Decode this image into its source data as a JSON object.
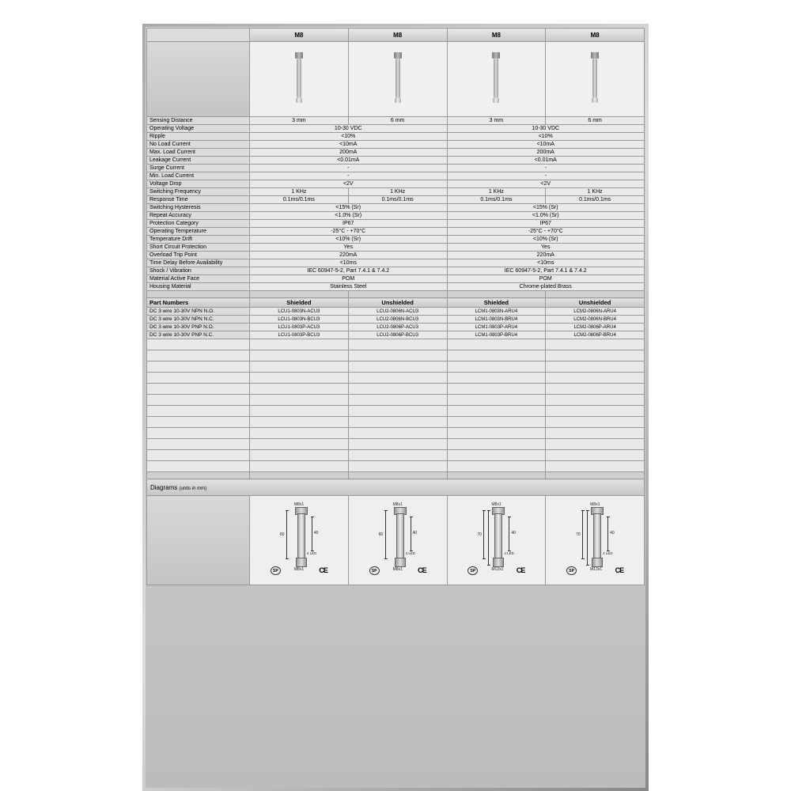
{
  "colors": {
    "border": "#999",
    "bg_light": "#e9e9e9",
    "bg_grad1": "#d8d8d8",
    "bg_grad2": "#bcbcbc"
  },
  "models": [
    "M8",
    "M8",
    "M8",
    "M8"
  ],
  "specs": [
    {
      "label": "Sensing Distance",
      "span": 1,
      "vals": [
        "3 mm",
        "6 mm",
        "3 mm",
        "6 mm"
      ]
    },
    {
      "label": "Operating Voltage",
      "span": 2,
      "vals": [
        "10-30 VDC",
        "10-30 VDC"
      ]
    },
    {
      "label": "Ripple",
      "span": 2,
      "vals": [
        "<10%",
        "<10%"
      ]
    },
    {
      "label": "No Load Current",
      "span": 2,
      "vals": [
        "<10mA",
        "<10mA"
      ]
    },
    {
      "label": "Max. Load Current",
      "span": 2,
      "vals": [
        "200mA",
        "200mA"
      ]
    },
    {
      "label": "Leakage Current",
      "span": 2,
      "vals": [
        "<0.01mA",
        "<0.01mA"
      ]
    },
    {
      "label": "Surge Current",
      "span": 2,
      "vals": [
        "-",
        "-"
      ]
    },
    {
      "label": "Min. Load Current",
      "span": 2,
      "vals": [
        "-",
        "-"
      ]
    },
    {
      "label": "Voltage Drop",
      "span": 2,
      "vals": [
        "<2V",
        "<2V"
      ]
    },
    {
      "label": "Switching Frequency",
      "span": 1,
      "vals": [
        "1 KHz",
        "1 KHz",
        "1 KHz",
        "1 KHz"
      ]
    },
    {
      "label": "Response Time",
      "span": 1,
      "vals": [
        "0.1ms/0.1ms",
        "0.1ms/0.1ms",
        "0.1ms/0.1ms",
        "0.1ms/0.1ms"
      ]
    },
    {
      "label": "Switching Hysteresis",
      "span": 2,
      "vals": [
        "<15% (Sr)",
        "<15% (Sr)"
      ]
    },
    {
      "label": "Repeat Accuracy",
      "span": 2,
      "vals": [
        "<1.0% (Sr)",
        "<1.0% (Sr)"
      ]
    },
    {
      "label": "Protection Category",
      "span": 2,
      "vals": [
        "IP67",
        "IP67"
      ]
    },
    {
      "label": "Operating Temperature",
      "span": 2,
      "vals": [
        "-25°C - +70°C",
        "-25°C - +70°C"
      ]
    },
    {
      "label": "Temperature Drift",
      "span": 2,
      "vals": [
        "<10% (Sr)",
        "<10% (Sr)"
      ]
    },
    {
      "label": "Short Circuit Protection",
      "span": 2,
      "vals": [
        "Yes",
        "Yes"
      ]
    },
    {
      "label": "Overload Trip Point",
      "span": 2,
      "vals": [
        "220mA",
        "220mA"
      ]
    },
    {
      "label": "Time Delay Before Availability",
      "span": 2,
      "vals": [
        "<10ms",
        "<10ms"
      ]
    },
    {
      "label": "Shock / Vibration",
      "span": 2,
      "vals": [
        "IEC 60947-5-2, Part 7.4.1 & 7.4.2",
        "IEC 60947-5-2, Part 7.4.1 & 7.4.2"
      ]
    },
    {
      "label": "Material Active Face",
      "span": 2,
      "vals": [
        "POM",
        "POM"
      ]
    },
    {
      "label": "Housing Material",
      "span": 2,
      "vals": [
        "Stainless Steel",
        "Chrome-plated Brass"
      ]
    }
  ],
  "partHeaders": [
    "Part Numbers",
    "Shielded",
    "Unshielded",
    "Shielded",
    "Unshielded"
  ],
  "parts": [
    {
      "label": "DC 3 wire 10-30V NPN N.O.",
      "vals": [
        "LCU1-0803N-ACU3",
        "LCU2-0806N-ACU3",
        "LCM1-0803N-ARU4",
        "LCM2-0806N-ARU4"
      ]
    },
    {
      "label": "DC 3 wire 10-30V NPN N.C.",
      "vals": [
        "LCU1-0803N-BCU3",
        "LCU2-0806N-BCU3",
        "LCM1-0803N-BRU4",
        "LCM2-0806N-BRU4"
      ]
    },
    {
      "label": "DC 3 wire 10-30V PNP N.O.",
      "vals": [
        "LCU1-0803P-ACU3",
        "LCU2-0806P-ACU3",
        "LCM1-0803P-ARU4",
        "LCM2-0806P-ARU4"
      ]
    },
    {
      "label": "DC 3 wire 10-30V PNP N.C.",
      "vals": [
        "LCU1-0803P-BCU3",
        "LCU2-0806P-BCU3",
        "LCM1-0803P-BRU4",
        "LCM2-0806P-BRU4"
      ]
    }
  ],
  "diagramTitle": "Diagrams",
  "diagramUnit": "(units in mm)",
  "diagrams": [
    {
      "thread": "M8x1",
      "conn": "M8x1",
      "h1": "60",
      "h2": "40",
      "led": "4 LED"
    },
    {
      "thread": "M8x1",
      "conn": "M8x1",
      "h1": "60",
      "h2": "40",
      "led": "4 LED"
    },
    {
      "thread": "M8x1",
      "conn": "M12x1",
      "h1": "70",
      "h2": "40",
      "led": "4 LED",
      "h3": "70"
    },
    {
      "thread": "M8x1",
      "conn": "M12x1",
      "h1": "70",
      "h2": "40",
      "led": "4 LED",
      "h3": "70"
    }
  ],
  "cert": {
    "csa": "SP",
    "ce": "CE"
  }
}
